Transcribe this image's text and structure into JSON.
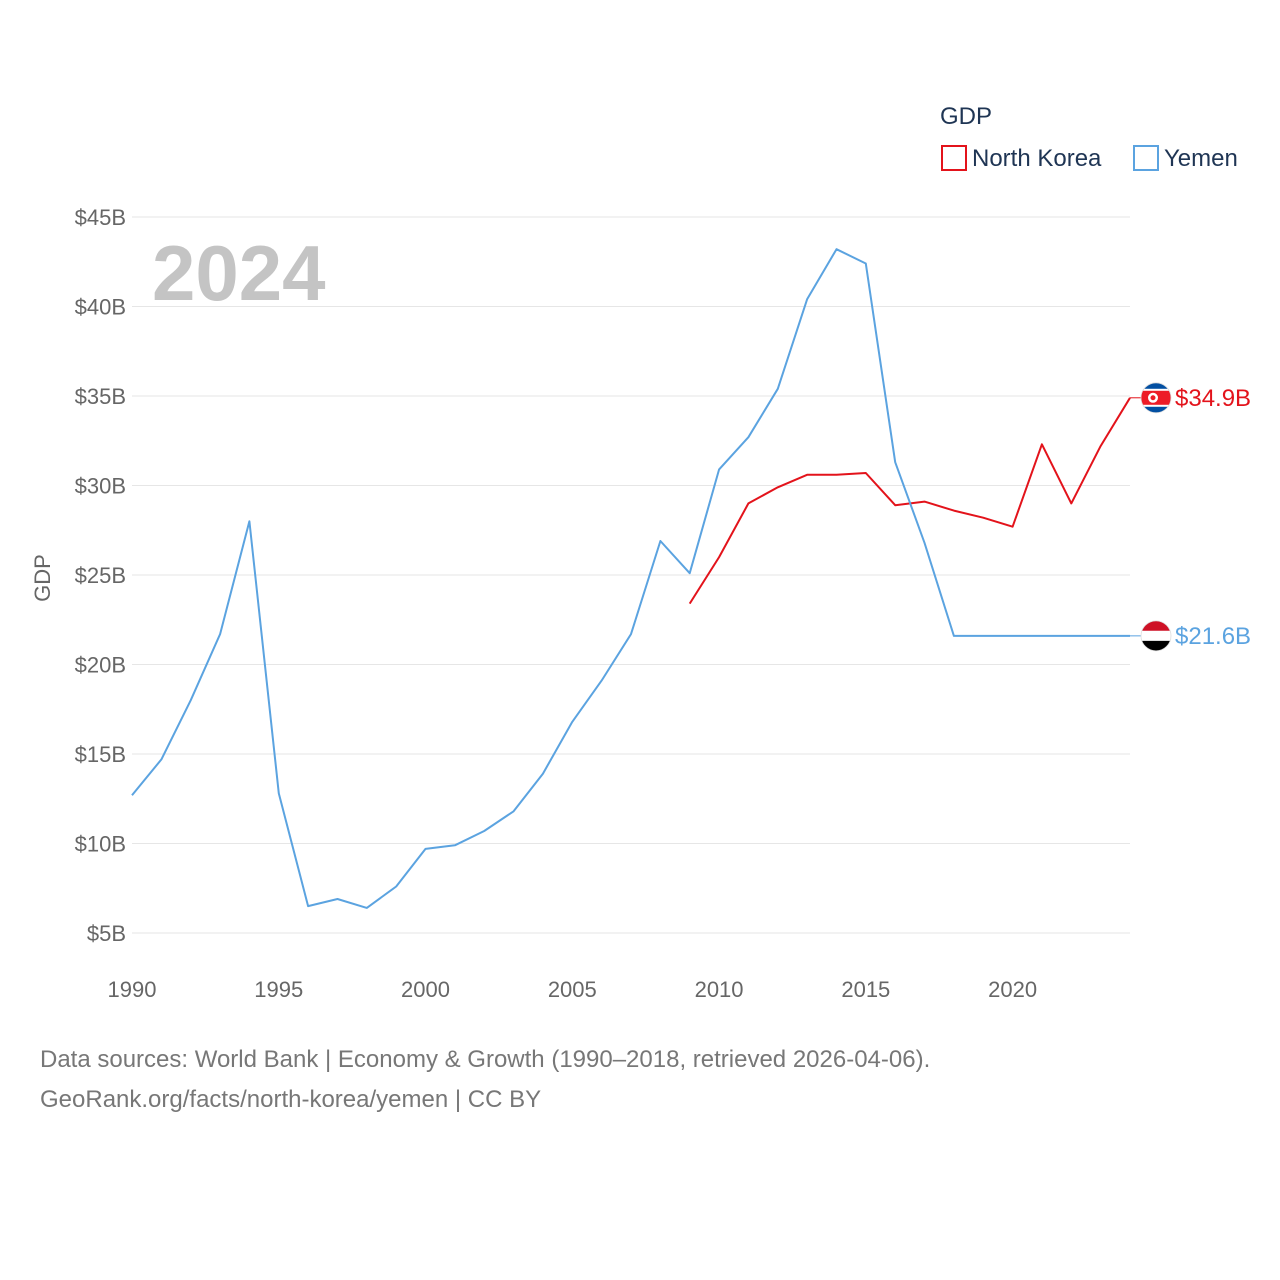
{
  "chart_data": {
    "type": "line",
    "title": "",
    "year_label": "2024",
    "ylabel": "GDP",
    "xlabel": "",
    "x": [
      1990,
      1991,
      1992,
      1993,
      1994,
      1995,
      1996,
      1997,
      1998,
      1999,
      2000,
      2001,
      2002,
      2003,
      2004,
      2005,
      2006,
      2007,
      2008,
      2009,
      2010,
      2011,
      2012,
      2013,
      2014,
      2015,
      2016,
      2017,
      2018,
      2019,
      2020,
      2021,
      2022,
      2023,
      2024
    ],
    "xlim": [
      1990,
      2024
    ],
    "ylim": [
      5,
      45
    ],
    "x_ticks": [
      1990,
      1995,
      2000,
      2005,
      2010,
      2015,
      2020
    ],
    "x_tick_labels": [
      "1990",
      "1995",
      "2000",
      "2005",
      "2010",
      "2015",
      "2020"
    ],
    "y_ticks": [
      5,
      10,
      15,
      20,
      25,
      30,
      35,
      40,
      45
    ],
    "y_tick_labels": [
      "$5B",
      "$10B",
      "$15B",
      "$20B",
      "$25B",
      "$30B",
      "$35B",
      "$40B",
      "$45B"
    ],
    "legend": {
      "title": "GDP",
      "position": "top-right"
    },
    "series": [
      {
        "name": "North Korea",
        "color": "#e3131b",
        "end_label": "$34.9B",
        "values": [
          null,
          null,
          null,
          null,
          null,
          null,
          null,
          null,
          null,
          null,
          null,
          null,
          null,
          null,
          null,
          null,
          null,
          null,
          null,
          23.4,
          26.0,
          29.0,
          29.9,
          30.6,
          30.6,
          30.7,
          28.9,
          29.1,
          28.6,
          28.2,
          27.7,
          32.3,
          29.0,
          32.2,
          34.9
        ]
      },
      {
        "name": "Yemen",
        "color": "#5ba3e0",
        "end_label": "$21.6B",
        "values": [
          12.7,
          14.7,
          18.0,
          21.7,
          28.0,
          12.8,
          6.5,
          6.9,
          6.4,
          7.6,
          9.7,
          9.9,
          10.7,
          11.8,
          13.9,
          16.8,
          19.1,
          21.7,
          26.9,
          25.1,
          30.9,
          32.7,
          35.4,
          40.4,
          43.2,
          42.4,
          31.3,
          26.8,
          21.6,
          21.6,
          21.6,
          21.6,
          21.6,
          21.6,
          21.6
        ]
      }
    ]
  },
  "footer": {
    "source_line": "Data sources: World Bank | Economy & Growth (1990–2018, retrieved 2026-04-06).",
    "credit_line": "GeoRank.org/facts/north-korea/yemen | CC BY"
  }
}
